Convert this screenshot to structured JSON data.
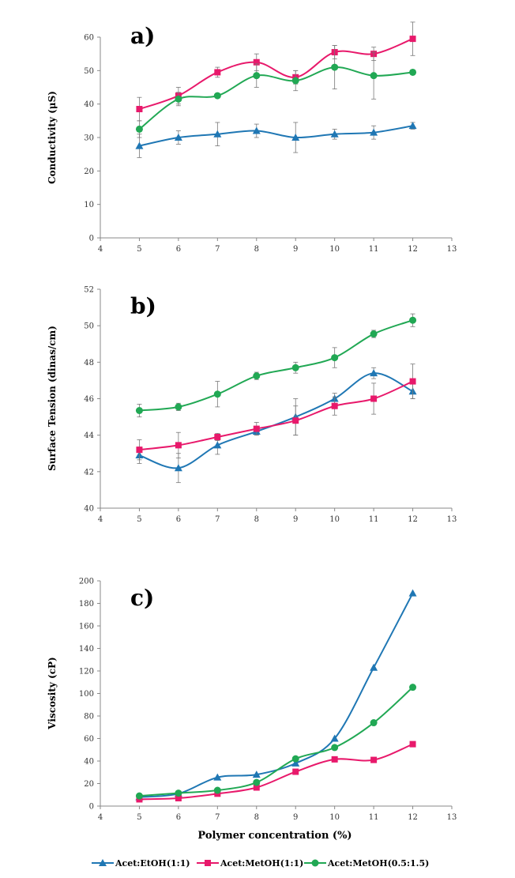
{
  "colors": {
    "Acet:EtOH(1:1)": "#1f77b4",
    "Acet:MetOH(1:1)": "#e8196b",
    "Acet:MetOH(0.5:1.5)": "#21a854"
  },
  "legend": {
    "items": [
      "Acet:EtOH(1:1)",
      "Acet:MetOH(1:1)",
      "Acet:MetOH(0.5:1.5)"
    ],
    "markers": [
      "triangle",
      "square",
      "circle"
    ],
    "placement": "bottom"
  },
  "chart_data": [
    {
      "type": "line",
      "panel_label": "a)",
      "ylabel": "Conductivity (μS)",
      "xlabel": "",
      "xlim": [
        4,
        13
      ],
      "ylim": [
        0,
        60
      ],
      "xticks": [
        4,
        5,
        6,
        7,
        8,
        9,
        10,
        11,
        12,
        13
      ],
      "yticks": [
        0,
        10,
        20,
        30,
        40,
        50,
        60
      ],
      "x": [
        5,
        6,
        7,
        8,
        9,
        10,
        11,
        12
      ],
      "series": [
        {
          "name": "Acet:EtOH(1:1)",
          "marker": "triangle",
          "values": [
            27.5,
            30,
            31,
            32,
            30,
            31,
            31.5,
            33.5
          ],
          "errors": [
            3.5,
            2,
            3.5,
            2,
            4.5,
            1.5,
            2,
            1
          ]
        },
        {
          "name": "Acet:MetOH(1:1)",
          "marker": "square",
          "values": [
            38.5,
            42.5,
            49.5,
            52.5,
            48,
            55.5,
            55,
            59.5
          ],
          "errors": [
            3.5,
            2.5,
            1.5,
            2.5,
            2,
            2,
            2,
            5
          ]
        },
        {
          "name": "Acet:MetOH(0.5:1.5)",
          "marker": "circle",
          "values": [
            32.5,
            41.5,
            42.5,
            48.5,
            47,
            51,
            48.5,
            49.5
          ],
          "errors": [
            2.5,
            2,
            0,
            3.5,
            3,
            6.5,
            7,
            0
          ]
        }
      ]
    },
    {
      "type": "line",
      "panel_label": "b)",
      "ylabel": "Surface Tension (dinas/cm)",
      "xlabel": "",
      "xlim": [
        4,
        13
      ],
      "ylim": [
        40,
        52
      ],
      "xticks": [
        4,
        5,
        6,
        7,
        8,
        9,
        10,
        11,
        12,
        13
      ],
      "yticks": [
        40,
        42,
        44,
        46,
        48,
        50,
        52
      ],
      "x": [
        5,
        6,
        7,
        8,
        9,
        10,
        11,
        12
      ],
      "series": [
        {
          "name": "Acet:EtOH(1:1)",
          "marker": "triangle",
          "values": [
            42.9,
            42.2,
            43.45,
            44.2,
            45,
            46,
            47.4,
            46.4
          ],
          "errors": [
            0.45,
            0.8,
            0.5,
            0.2,
            1,
            0.3,
            0.3,
            0.4
          ]
        },
        {
          "name": "Acet:MetOH(1:1)",
          "marker": "square",
          "values": [
            43.2,
            43.45,
            43.9,
            44.35,
            44.8,
            45.6,
            46,
            46.95
          ],
          "errors": [
            0.55,
            0.7,
            0.2,
            0.35,
            0.8,
            0.5,
            0.85,
            0.95
          ]
        },
        {
          "name": "Acet:MetOH(0.5:1.5)",
          "marker": "circle",
          "values": [
            45.35,
            45.55,
            46.25,
            47.25,
            47.7,
            48.25,
            49.55,
            50.3
          ],
          "errors": [
            0.35,
            0.2,
            0.7,
            0.2,
            0.3,
            0.55,
            0.2,
            0.35
          ]
        }
      ]
    },
    {
      "type": "line",
      "panel_label": "c)",
      "ylabel": "Viscosity (cP)",
      "xlabel": "Polymer concentration (%)",
      "xlim": [
        4,
        13
      ],
      "ylim": [
        0,
        200
      ],
      "xticks": [
        4,
        5,
        6,
        7,
        8,
        9,
        10,
        11,
        12,
        13
      ],
      "yticks": [
        0,
        20,
        40,
        60,
        80,
        100,
        120,
        140,
        160,
        180,
        200
      ],
      "x": [
        5,
        6,
        7,
        8,
        9,
        10,
        11,
        12
      ],
      "series": [
        {
          "name": "Acet:EtOH(1:1)",
          "marker": "triangle",
          "values": [
            8,
            11,
            25.5,
            28,
            38,
            60,
            123,
            189
          ]
        },
        {
          "name": "Acet:MetOH(1:1)",
          "marker": "square",
          "values": [
            6,
            7,
            11,
            16.5,
            30.5,
            41.5,
            41,
            55
          ]
        },
        {
          "name": "Acet:MetOH(0.5:1.5)",
          "marker": "circle",
          "values": [
            9,
            11.5,
            14,
            21,
            42,
            52,
            74,
            105.5
          ]
        }
      ]
    }
  ]
}
